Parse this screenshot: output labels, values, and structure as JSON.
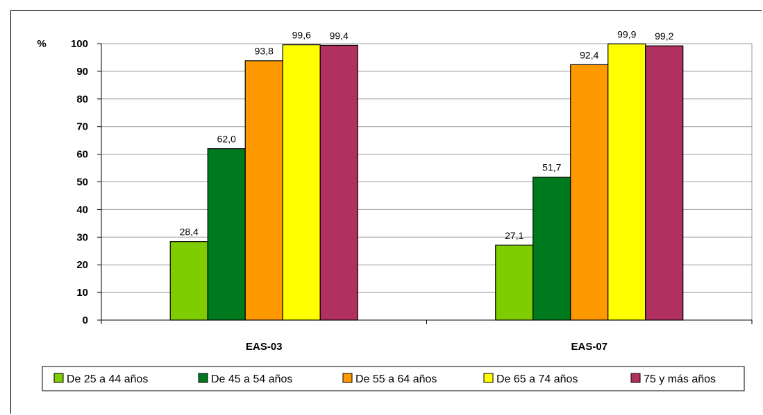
{
  "chart_data": {
    "type": "bar",
    "categories": [
      "EAS-03",
      "EAS-07"
    ],
    "series": [
      {
        "name": "De 25 a 44 años",
        "values": [
          28.4,
          27.1
        ],
        "labels": [
          "28,4",
          "27,1"
        ],
        "color": "#7fcc00"
      },
      {
        "name": "De 45 a 54 años",
        "values": [
          62.0,
          51.7
        ],
        "labels": [
          "62,0",
          "51,7"
        ],
        "color": "#007a1f"
      },
      {
        "name": "De 55 a 64 años",
        "values": [
          93.8,
          92.4
        ],
        "labels": [
          "93,8",
          "92,4"
        ],
        "color": "#ff9900"
      },
      {
        "name": "De 65 a 74 años",
        "values": [
          99.6,
          99.9
        ],
        "labels": [
          "99,6",
          "99,9"
        ],
        "color": "#ffff00"
      },
      {
        "name": "75 y más años",
        "values": [
          99.4,
          99.2
        ],
        "labels": [
          "99,4",
          "99,2"
        ],
        "color": "#b03060"
      }
    ],
    "ylabel": "%",
    "ylim": [
      0,
      100
    ],
    "yticks": [
      0,
      10,
      20,
      30,
      40,
      50,
      60,
      70,
      80,
      90,
      100
    ],
    "grid": true,
    "legend": "bottom"
  }
}
